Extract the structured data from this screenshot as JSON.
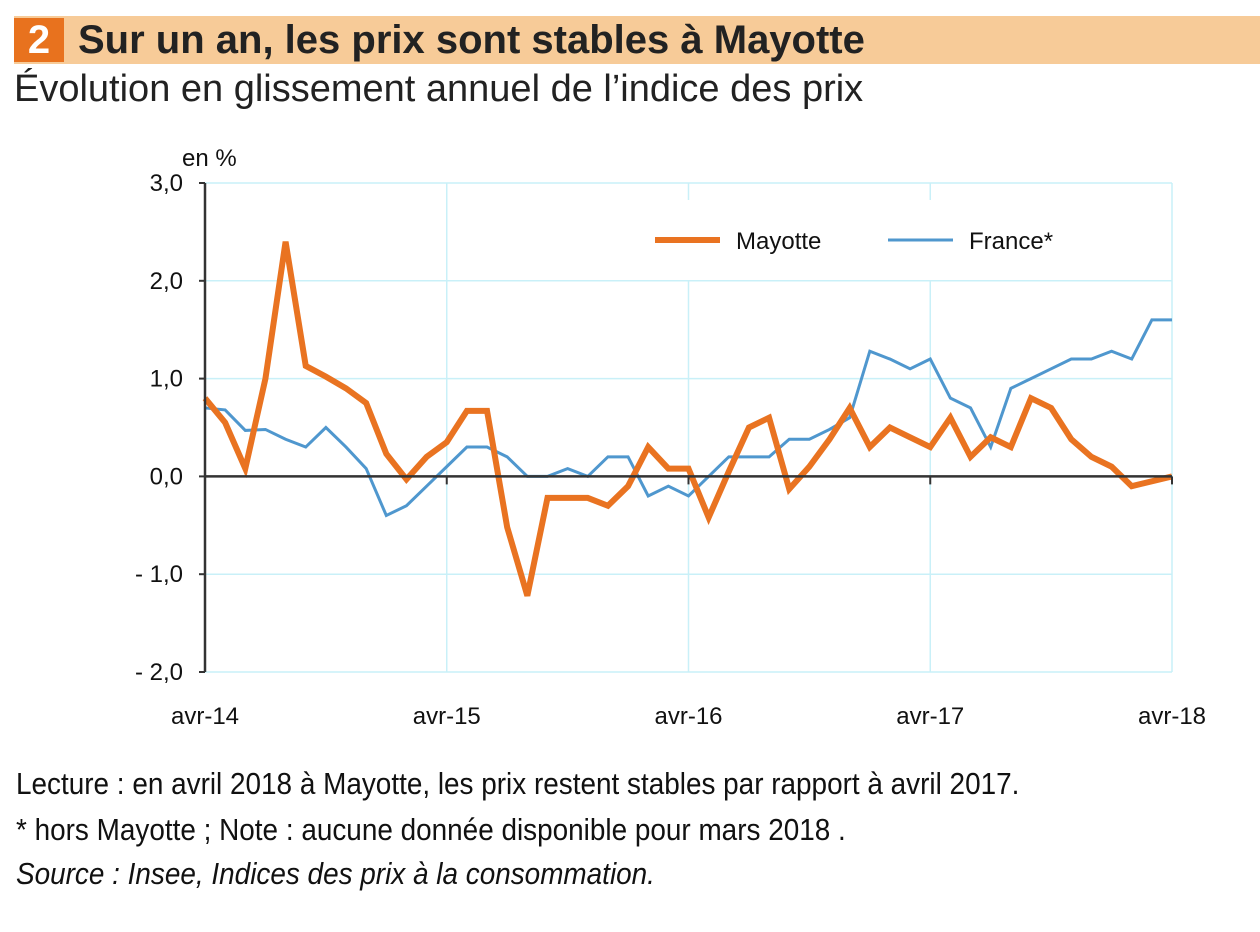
{
  "header": {
    "number": "2",
    "title": "Sur un an, les prix sont stables à Mayotte",
    "subtitle": "Évolution en glissement annuel de l’indice des prix"
  },
  "chart_data": {
    "type": "line",
    "title": "Sur un an, les prix sont stables à Mayotte",
    "subtitle": "Évolution en glissement annuel de l’indice des prix",
    "ylabel": "en %",
    "ylim": [
      -2.0,
      3.0
    ],
    "yticks": [
      "3,0",
      "2,0",
      "1,0",
      "0,0",
      "- 1,0",
      "- 2,0"
    ],
    "ytick_values": [
      3,
      2,
      1,
      0,
      -1,
      -2
    ],
    "xtick_labels": [
      "avr-14",
      "avr-15",
      "avr-16",
      "avr-17",
      "avr-18"
    ],
    "x_start": "avr-14",
    "x_end": "avr-18",
    "x_unit": "month",
    "grid": true,
    "legend_position": "top-right",
    "series": [
      {
        "name": "Mayotte",
        "color": "#E97321",
        "values": [
          0.8,
          0.55,
          0.08,
          1.0,
          2.4,
          1.13,
          1.02,
          0.9,
          0.75,
          0.23,
          -0.03,
          0.2,
          0.35,
          0.67,
          0.67,
          -0.52,
          -1.22,
          -0.22,
          -0.22,
          -0.22,
          -0.3,
          -0.1,
          0.3,
          0.08,
          0.08,
          -0.42,
          0.05,
          0.5,
          0.6,
          -0.13,
          0.1,
          0.38,
          0.7,
          0.3,
          0.5,
          0.4,
          0.3,
          0.6,
          0.2,
          0.4,
          0.3,
          0.8,
          0.7,
          0.38,
          0.2,
          0.1,
          -0.1,
          null,
          0.0
        ]
      },
      {
        "name": "France*",
        "color": "#4F97CE",
        "values": [
          0.7,
          0.68,
          0.47,
          0.48,
          0.38,
          0.3,
          0.5,
          0.3,
          0.08,
          -0.4,
          -0.3,
          -0.1,
          0.1,
          0.3,
          0.3,
          0.2,
          0.0,
          0.0,
          0.08,
          0.0,
          0.2,
          0.2,
          -0.2,
          -0.1,
          -0.2,
          0.0,
          0.2,
          0.2,
          0.2,
          0.38,
          0.38,
          0.48,
          0.6,
          1.28,
          1.2,
          1.1,
          1.2,
          0.8,
          0.7,
          0.3,
          0.9,
          1.0,
          1.1,
          1.2,
          1.2,
          1.28,
          1.2,
          1.6,
          1.6
        ]
      }
    ]
  },
  "footer": {
    "reading": "Lecture : en avril 2018 à Mayotte, les prix restent stables par rapport à avril 2017.",
    "note": "* hors Mayotte ; Note : aucune donnée disponible pour mars 2018 .",
    "source": "Source : Insee, Indices des prix à la consommation."
  }
}
